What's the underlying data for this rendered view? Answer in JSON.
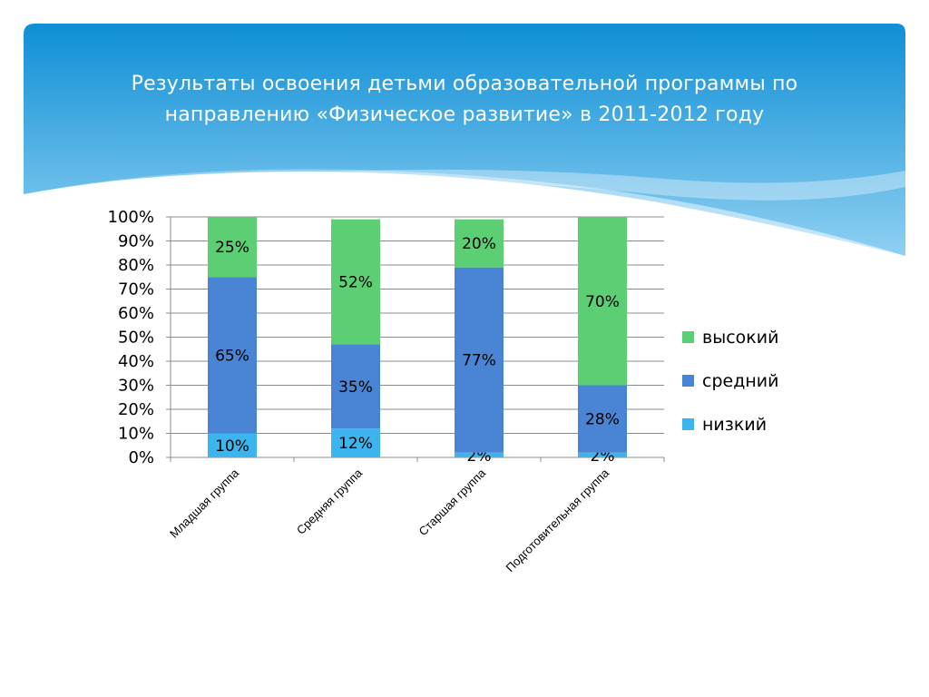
{
  "slide": {
    "title": "Результаты освоения детьми образовательной программы  по направлению «Физическое развитие» в  2011-2012  году"
  },
  "colors": {
    "header_top": "#0f8fd6",
    "header_bottom": "#8fd0f2",
    "low": "#3cb4ee",
    "mid": "#4a84d4",
    "high": "#5ccf74"
  },
  "chart_data": {
    "type": "bar",
    "stacked": true,
    "percent": true,
    "categories": [
      "Младшая группа",
      "Средняя  группа",
      "Старшая группа",
      "Подготовительная группа"
    ],
    "series": [
      {
        "name": "низкий",
        "values": [
          10,
          12,
          2,
          2
        ],
        "labels": [
          "10%",
          "12%",
          "2%",
          "2%"
        ],
        "color": "#3cb4ee"
      },
      {
        "name": "средний",
        "values": [
          65,
          35,
          77,
          28
        ],
        "labels": [
          "65%",
          "35%",
          "77%",
          "28%"
        ],
        "color": "#4a84d4"
      },
      {
        "name": "высокий",
        "values": [
          25,
          52,
          20,
          70
        ],
        "labels": [
          "25%",
          "52%",
          "20%",
          "70%"
        ],
        "color": "#5ccf74"
      }
    ],
    "ylim": [
      0,
      100
    ],
    "yticks": [
      "0%",
      "10%",
      "20%",
      "30%",
      "40%",
      "50%",
      "60%",
      "70%",
      "80%",
      "90%",
      "100%"
    ],
    "legend_order": [
      "высокий",
      "средний",
      "низкий"
    ],
    "legend": "right",
    "grid": true
  }
}
